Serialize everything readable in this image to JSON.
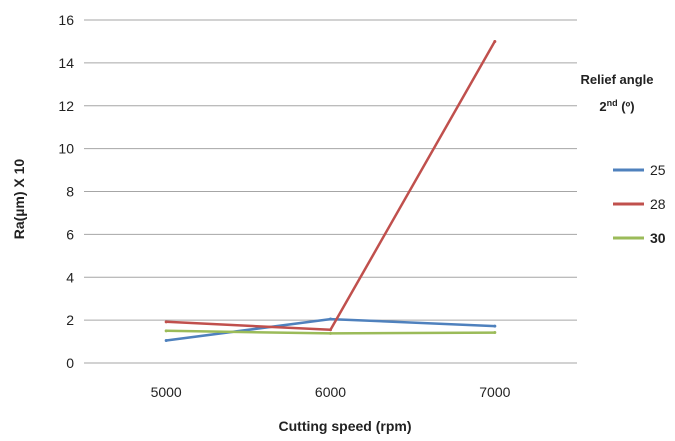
{
  "chart_data": {
    "type": "line",
    "x": [
      5000,
      6000,
      7000
    ],
    "xlabel": "Cutting speed (rpm)",
    "ylabel": "Ra(µm) X 10",
    "ylim": [
      0,
      16
    ],
    "yticks": [
      0,
      2,
      4,
      6,
      8,
      10,
      12,
      14,
      16
    ],
    "grid": "horizontal",
    "legend": {
      "title_line1": "Relief angle",
      "title_line2_base": "2",
      "title_line2_sup": "nd",
      "title_line2_rest": " (º)",
      "placement": "right"
    },
    "series": [
      {
        "name": "25",
        "color": "#4F81BD",
        "values": [
          1.05,
          2.05,
          1.72
        ]
      },
      {
        "name": "28",
        "color": "#C0504D",
        "values": [
          1.92,
          1.55,
          15.0
        ]
      },
      {
        "name": "30",
        "color": "#9BBB59",
        "values": [
          1.5,
          1.38,
          1.42
        ]
      }
    ]
  }
}
